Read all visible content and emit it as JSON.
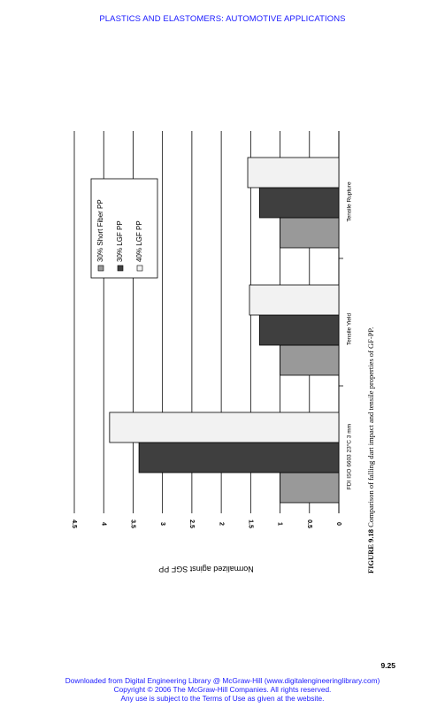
{
  "header": {
    "title": "PLASTICS AND ELASTOMERS: AUTOMOTIVE APPLICATIONS"
  },
  "caption": {
    "figure_label": "FIGURE 9.18",
    "text": "Comparison of falling dart impact and tensile properties of GF-PP."
  },
  "page_number": "9.25",
  "footer": {
    "line1": "Downloaded from Digital Engineering Library @ McGraw-Hill (www.digitalengineeringlibrary.com)",
    "line2": "Copyright © 2006 The McGraw-Hill Companies. All rights reserved.",
    "line3": "Any use is subject to the Terms of Use as given at the website."
  },
  "colors": {
    "link": "#1a1aff"
  },
  "chart_data": {
    "type": "bar",
    "orientation": "rotated-page",
    "categories": [
      "FDI ISO 6603 23°C 3 mm",
      "Tensile Yield",
      "Tensile Rupture"
    ],
    "series": [
      {
        "name": "30% Short Fiber PP",
        "color": "#999999",
        "values": [
          1.0,
          1.0,
          1.0
        ]
      },
      {
        "name": "30% LGF PP",
        "color": "#3f3f3f",
        "values": [
          3.4,
          1.35,
          1.35
        ]
      },
      {
        "name": "40% LGF PP",
        "color": "#f2f2f2",
        "values": [
          3.9,
          1.52,
          1.55
        ]
      }
    ],
    "ylabel": "Normalized aginst SGF PP",
    "xlabel": "",
    "ylim": [
      0,
      4.5
    ],
    "yticks": [
      "0",
      "0.5",
      "1",
      "1.5",
      "2",
      "2.5",
      "3",
      "3.5",
      "4",
      "4.5"
    ],
    "grid": true,
    "legend_position": "top-right"
  }
}
